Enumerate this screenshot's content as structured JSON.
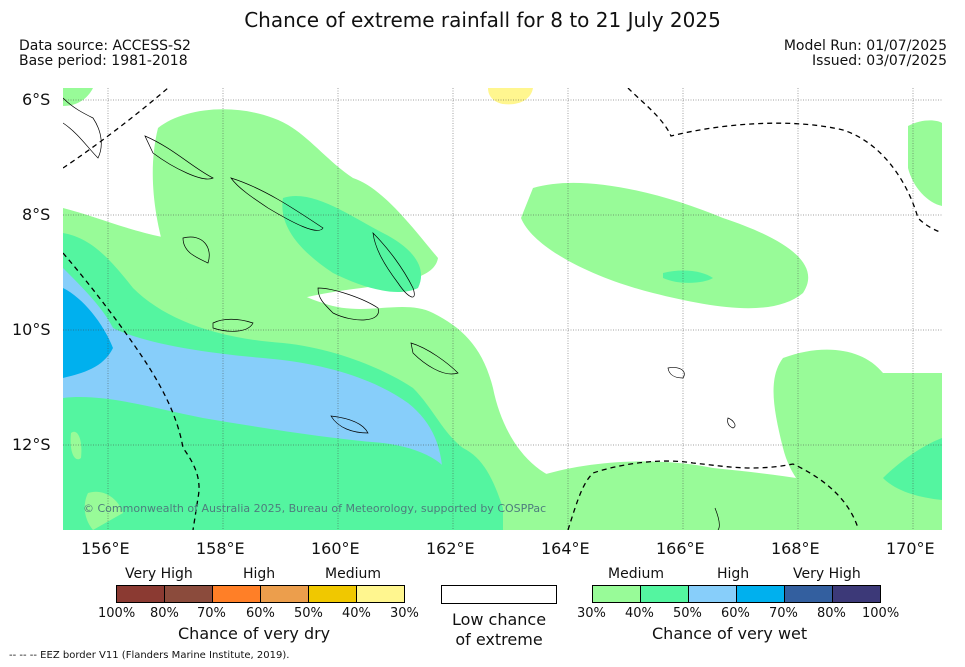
{
  "title": "Chance of extreme rainfall for 8 to 21 July 2025",
  "data_source": "Data source: ACCESS-S2",
  "base_period": "Base period: 1981-2018",
  "model_run": "Model Run: 01/07/2025",
  "issued": "Issued: 03/07/2025",
  "map": {
    "lat_labels": [
      "6°S",
      "8°S",
      "10°S",
      "12°S"
    ],
    "lon_labels": [
      "156°E",
      "158°E",
      "160°E",
      "162°E",
      "164°E",
      "166°E",
      "168°E",
      "170°E"
    ],
    "credit": "© Commonwealth of Australia 2025, Bureau of Meteorology, supported by COSPPac"
  },
  "dry_scale": {
    "headers": [
      "Very High",
      "High",
      "Medium"
    ],
    "ticks": [
      "100%",
      "80%",
      "70%",
      "60%",
      "50%",
      "40%",
      "30%"
    ],
    "colors": [
      "#8b3a32",
      "#8b4b3c",
      "#ff7f27",
      "#ec9e4c",
      "#f0c800",
      "#fff68f"
    ],
    "caption": "Chance of very dry"
  },
  "low_chance_caption": "Low chance\nof extreme",
  "wet_scale": {
    "headers": [
      "Medium",
      "High",
      "Very High"
    ],
    "ticks": [
      "30%",
      "40%",
      "50%",
      "60%",
      "70%",
      "80%",
      "100%"
    ],
    "colors": [
      "#98fb98",
      "#54f5a0",
      "#87cefa",
      "#00b0ee",
      "#335f9f",
      "#3c3978"
    ],
    "caption": "Chance of very wet"
  },
  "footer": "--  --  -- EEZ border V11 (Flanders Marine Institute, 2019)."
}
